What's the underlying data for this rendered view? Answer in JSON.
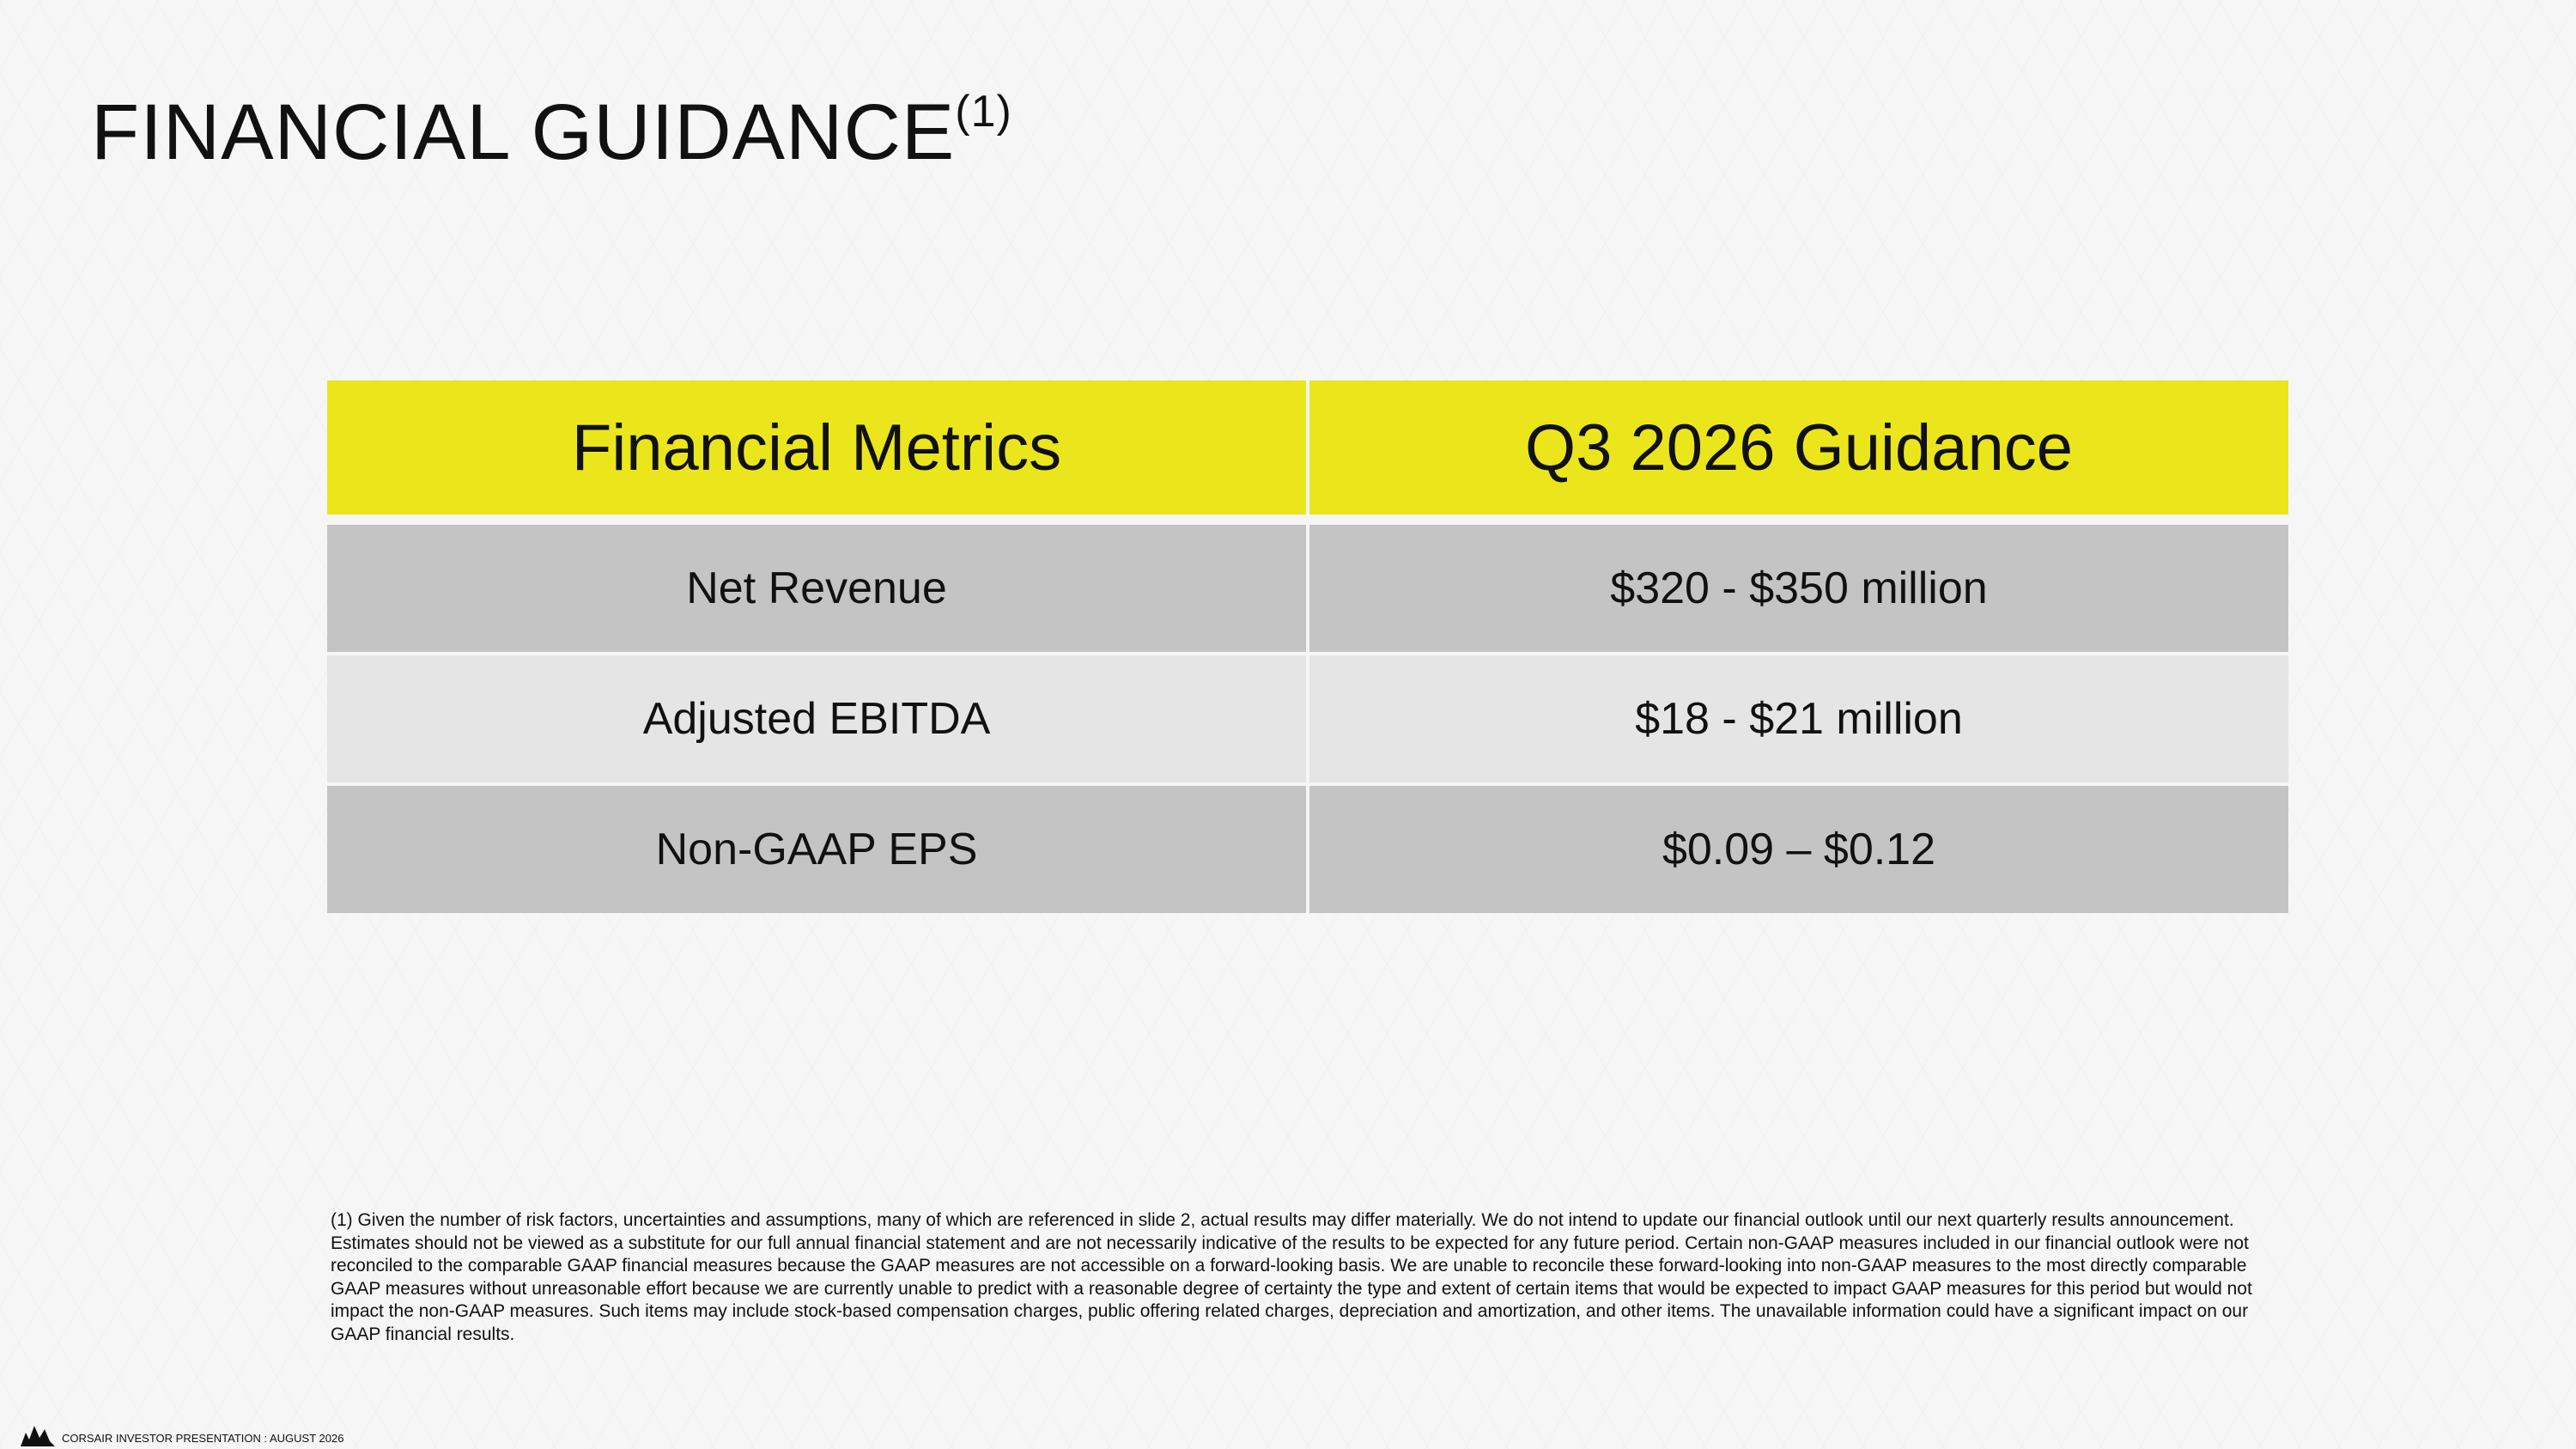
{
  "header": {
    "title": "FINANCIAL GUIDANCE",
    "footnote_mark": "(1)"
  },
  "table": {
    "headers": [
      "Financial Metrics",
      "Q3 2026 Guidance"
    ],
    "rows": [
      [
        "Net Revenue",
        "$320 - $350 million"
      ],
      [
        "Adjusted EBITDA",
        "$18 - $21 million"
      ],
      [
        "Non-GAAP EPS",
        "$0.09 – $0.12"
      ]
    ]
  },
  "footnote": "(1) Given the number of risk factors, uncertainties and assumptions, many of which are referenced in slide 2, actual results may differ materially. We do not intend to update our financial outlook until our next quarterly results announcement. Estimates should not be viewed as a substitute for our full annual financial statement and are not necessarily indicative of the results to be expected for any future period. Certain non-GAAP measures included in our financial outlook were not reconciled to the comparable GAAP financial measures because the GAAP measures are not accessible on a forward-looking basis. We are unable to reconcile these forward-looking into non-GAAP measures to the most directly comparable GAAP measures without unreasonable effort because we are currently unable to predict with a reasonable degree of certainty the type and extent of certain items that would be expected to impact GAAP measures for this period but would not impact the non-GAAP measures. Such items may include stock-based compensation charges, public offering related charges, depreciation and amortization, and other items. The unavailable information could have a significant impact on our GAAP financial results.",
  "footer": "CORSAIR INVESTOR PRESENTATION : AUGUST 2026"
}
